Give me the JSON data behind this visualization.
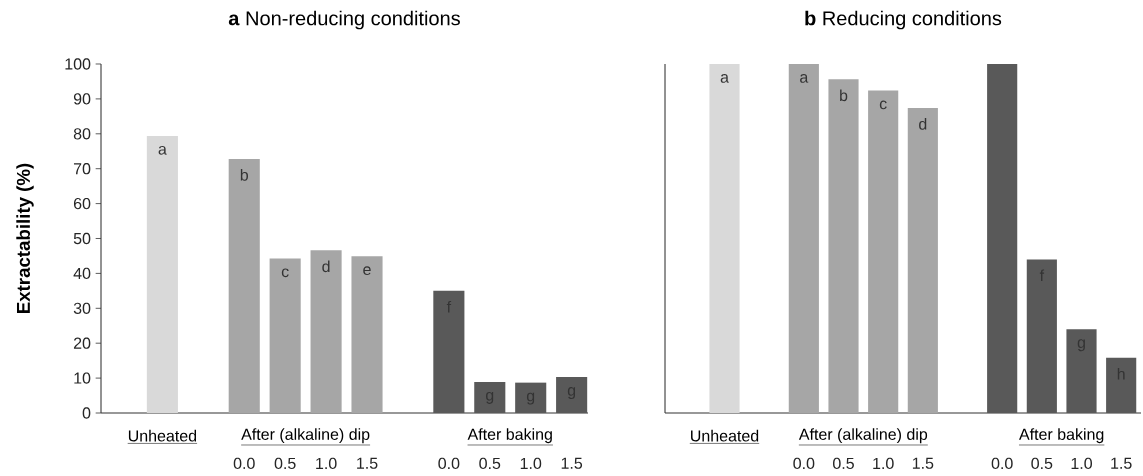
{
  "chart_data": [
    {
      "type": "bar",
      "title": "**a** Non-reducing conditions",
      "ylabel": "Extractability (%)",
      "categories": [
        null,
        null,
        null,
        "0.0",
        "0.5",
        "1.0",
        "1.5",
        null,
        "0.0",
        "0.5",
        "1.0",
        "1.5"
      ],
      "values": [
        null,
        79.4,
        null,
        72.8,
        44.3,
        46.6,
        44.9,
        null,
        35.0,
        8.9,
        8.7,
        10.3
      ],
      "colors": [
        null,
        "#d9d9d9",
        null,
        "#a6a6a6",
        "#a6a6a6",
        "#a6a6a6",
        "#a6a6a6",
        null,
        "#595959",
        "#595959",
        "#595959",
        "#595959"
      ],
      "value_labels": [
        null,
        "a",
        null,
        "b",
        "c",
        "d",
        "e",
        null,
        "f",
        "g",
        "g",
        "g"
      ],
      "ylim": [
        0,
        100
      ],
      "yticks": [
        0,
        10,
        20,
        30,
        40,
        50,
        60,
        70,
        80,
        90,
        100
      ],
      "annotations": [
        "Unheated",
        "After (alkaline) dip",
        "After baking"
      ]
    },
    {
      "type": "bar",
      "title": "**b** Reducing conditions",
      "categories": [
        null,
        null,
        null,
        "0.0",
        "0.5",
        "1.0",
        "1.5",
        null,
        "0.0",
        "0.5",
        "1.0",
        "1.5"
      ],
      "values": [
        null,
        100,
        null,
        100,
        95.6,
        92.4,
        87.4,
        null,
        100,
        44.0,
        24.0,
        15.8
      ],
      "colors": [
        null,
        "#d9d9d9",
        null,
        "#a6a6a6",
        "#a6a6a6",
        "#a6a6a6",
        "#a6a6a6",
        null,
        "#595959",
        "#595959",
        "#595959",
        "#595959"
      ],
      "value_labels": [
        null,
        "a",
        null,
        "a",
        "b",
        "c",
        "d",
        null,
        null,
        "f",
        "g",
        "h"
      ],
      "ylim": [
        0,
        100
      ],
      "tick_labels": "x",
      "annotations": [
        "Unheated",
        "After (alkaline) dip",
        "After baking"
      ]
    }
  ]
}
